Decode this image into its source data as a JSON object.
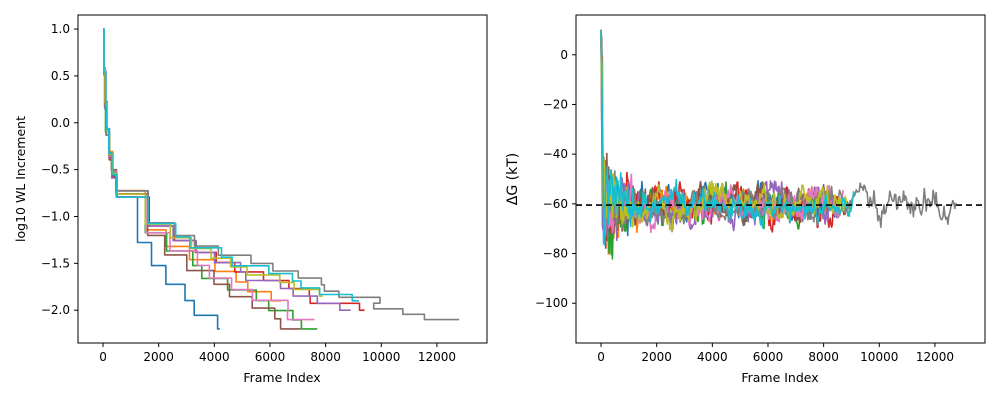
{
  "colors": [
    "#1f77b4",
    "#ff7f0e",
    "#2ca02c",
    "#d62728",
    "#9467bd",
    "#8c564b",
    "#e377c2",
    "#7f7f7f",
    "#bcbd22",
    "#17becf"
  ],
  "chart_data": [
    {
      "type": "line",
      "step": true,
      "xlabel": "Frame Index",
      "ylabel": "log10 WL Increment",
      "xlim": [
        -900,
        13800
      ],
      "ylim": [
        -2.35,
        1.15
      ],
      "xticks": [
        0,
        2000,
        4000,
        6000,
        8000,
        10000,
        12000
      ],
      "xtick_labels": [
        "0",
        "2000",
        "4000",
        "6000",
        "8000",
        "10000",
        "12000"
      ],
      "yticks": [
        1.0,
        0.5,
        0.0,
        -0.5,
        -1.0,
        -1.5,
        -2.0
      ],
      "ytick_labels": [
        "1.0",
        "0.5",
        "0.0",
        "−0.5",
        "−1.0",
        "−1.5",
        "−2.0"
      ],
      "series": [
        {
          "color_index": 0,
          "end_x": 4200,
          "end_y": -2.2
        },
        {
          "color_index": 1,
          "end_x": 6400,
          "end_y": -1.9
        },
        {
          "color_index": 2,
          "end_x": 7700,
          "end_y": -2.2
        },
        {
          "color_index": 3,
          "end_x": 9400,
          "end_y": -2.0
        },
        {
          "color_index": 4,
          "end_x": 8900,
          "end_y": -2.0
        },
        {
          "color_index": 5,
          "end_x": 7100,
          "end_y": -2.2
        },
        {
          "color_index": 6,
          "end_x": 7600,
          "end_y": -2.1
        },
        {
          "color_index": 7,
          "end_x": 12800,
          "end_y": -2.1
        },
        {
          "color_index": 8,
          "end_x": 7900,
          "end_y": -1.85
        },
        {
          "color_index": 9,
          "end_x": 9200,
          "end_y": -1.9
        }
      ]
    },
    {
      "type": "line",
      "xlabel": "Frame Index",
      "ylabel": "ΔG (kT)",
      "xlim": [
        -900,
        13800
      ],
      "ylim": [
        -116,
        16
      ],
      "xticks": [
        0,
        2000,
        4000,
        6000,
        8000,
        10000,
        12000
      ],
      "xtick_labels": [
        "0",
        "2000",
        "4000",
        "6000",
        "8000",
        "10000",
        "12000"
      ],
      "yticks": [
        0,
        -20,
        -40,
        -60,
        -80,
        -100
      ],
      "ytick_labels": [
        "0",
        "−20",
        "−40",
        "−60",
        "−80",
        "−100"
      ],
      "reference_line_y": -60.5,
      "series": [
        {
          "color_index": 0,
          "end_x": 8400,
          "amplitude": 6
        },
        {
          "color_index": 1,
          "end_x": 8600,
          "amplitude": 6
        },
        {
          "color_index": 2,
          "end_x": 8200,
          "amplitude": 7
        },
        {
          "color_index": 3,
          "end_x": 8800,
          "amplitude": 7
        },
        {
          "color_index": 4,
          "end_x": 8500,
          "amplitude": 6
        },
        {
          "color_index": 5,
          "end_x": 8300,
          "amplitude": 6
        },
        {
          "color_index": 6,
          "end_x": 8700,
          "amplitude": 6
        },
        {
          "color_index": 7,
          "end_x": 12750,
          "amplitude": 7
        },
        {
          "color_index": 8,
          "end_x": 8900,
          "amplitude": 6
        },
        {
          "color_index": 9,
          "end_x": 9100,
          "amplitude": 6
        }
      ]
    }
  ]
}
